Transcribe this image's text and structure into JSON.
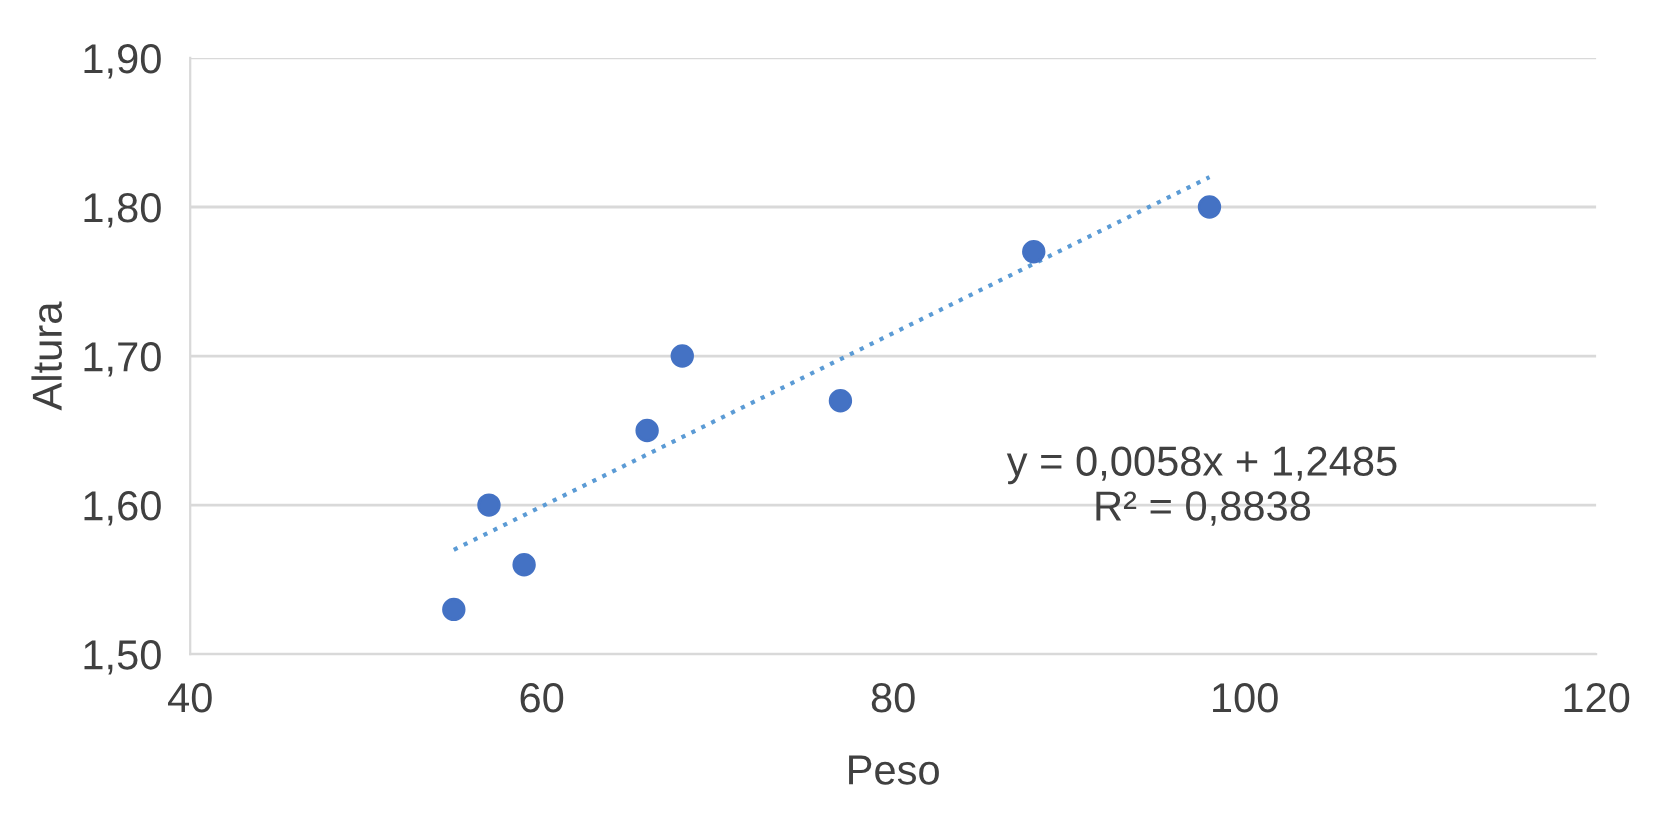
{
  "chart_data": {
    "type": "scatter",
    "xlabel": "Peso",
    "ylabel": "Altura",
    "xlim": [
      40,
      120
    ],
    "xticks": [
      40,
      60,
      80,
      100,
      120
    ],
    "ylim": [
      1.5,
      1.9
    ],
    "yticks": [
      {
        "value": 1.5,
        "label": "1,50"
      },
      {
        "value": 1.6,
        "label": "1,60"
      },
      {
        "value": 1.7,
        "label": "1,70"
      },
      {
        "value": 1.8,
        "label": "1,80"
      },
      {
        "value": 1.9,
        "label": "1,90"
      }
    ],
    "grid": "y",
    "legend": false,
    "series": [
      {
        "marker": "circle",
        "color": "#4472c4",
        "x": [
          55,
          57,
          59,
          66,
          68,
          77,
          88,
          98
        ],
        "values": [
          1.53,
          1.6,
          1.56,
          1.65,
          1.7,
          1.67,
          1.77,
          1.8
        ]
      },
      {
        "type": "line",
        "color": "#5b9bd5",
        "line_style": "dotted",
        "x": [
          55,
          98
        ],
        "values": [
          1.57,
          1.82
        ]
      }
    ],
    "annotations": [
      "y = 0,0058x + 1,2485\nR² = 0,8838"
    ]
  }
}
